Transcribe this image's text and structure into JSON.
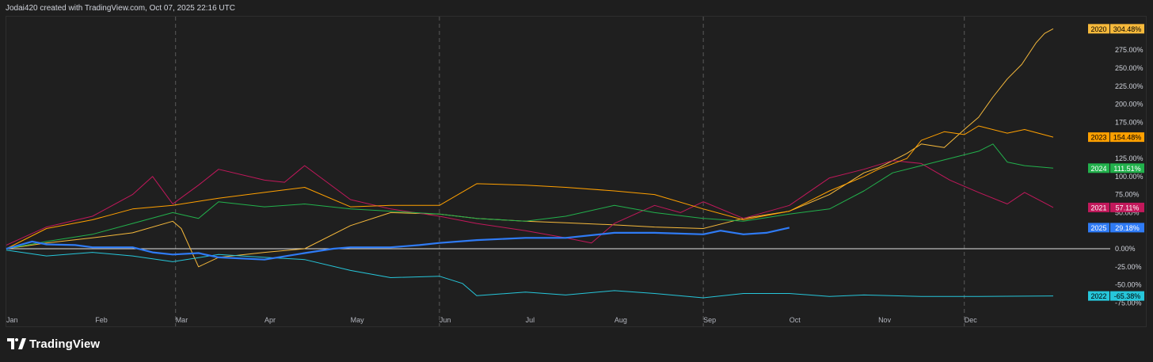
{
  "header": {
    "credit": "Jodai420 created with TradingView.com, Oct 07, 2025 22:16 UTC"
  },
  "footer": {
    "brand": "TradingView"
  },
  "chart_data": {
    "type": "line",
    "title": "",
    "xlabel": "",
    "ylabel": "",
    "x_ticks": [
      "Jan",
      "Feb",
      "Mar",
      "Apr",
      "May",
      "Jun",
      "Jul",
      "Aug",
      "Sep",
      "Oct",
      "Nov",
      "Dec"
    ],
    "y_ticks": [
      "275.00%",
      "250.00%",
      "225.00%",
      "200.00%",
      "175.00%",
      "125.00%",
      "100.00%",
      "75.00%",
      "50.00%",
      "0.00%",
      "-25.00%",
      "-50.00%",
      "-75.00%"
    ],
    "x_range": [
      1,
      366
    ],
    "ylim": [
      -75,
      304.48
    ],
    "grid": {
      "vertical_dashed_months": [
        "Mar",
        "Jun",
        "Sep",
        "Dec"
      ],
      "zero_line": true
    },
    "series": [
      {
        "name": "2020",
        "color": "#f6b93b",
        "last_label": "304.48%",
        "points": [
          [
            1,
            0
          ],
          [
            15,
            8
          ],
          [
            31,
            15
          ],
          [
            45,
            22
          ],
          [
            59,
            38
          ],
          [
            62,
            28
          ],
          [
            68,
            -25
          ],
          [
            75,
            -12
          ],
          [
            91,
            -5
          ],
          [
            105,
            0
          ],
          [
            121,
            32
          ],
          [
            135,
            50
          ],
          [
            152,
            48
          ],
          [
            165,
            42
          ],
          [
            182,
            38
          ],
          [
            196,
            36
          ],
          [
            213,
            33
          ],
          [
            227,
            30
          ],
          [
            244,
            28
          ],
          [
            258,
            42
          ],
          [
            274,
            52
          ],
          [
            288,
            75
          ],
          [
            300,
            105
          ],
          [
            305,
            112
          ],
          [
            315,
            132
          ],
          [
            320,
            145
          ],
          [
            328,
            140
          ],
          [
            335,
            165
          ],
          [
            340,
            182
          ],
          [
            345,
            210
          ],
          [
            350,
            235
          ],
          [
            355,
            255
          ],
          [
            360,
            285
          ],
          [
            363,
            298
          ],
          [
            366,
            304.48
          ]
        ]
      },
      {
        "name": "2021",
        "color": "#c2185b",
        "last_label": "57.11%",
        "points": [
          [
            1,
            5
          ],
          [
            15,
            30
          ],
          [
            31,
            45
          ],
          [
            45,
            75
          ],
          [
            52,
            100
          ],
          [
            59,
            62
          ],
          [
            68,
            88
          ],
          [
            75,
            110
          ],
          [
            91,
            95
          ],
          [
            98,
            92
          ],
          [
            105,
            115
          ],
          [
            121,
            68
          ],
          [
            135,
            55
          ],
          [
            152,
            45
          ],
          [
            165,
            35
          ],
          [
            182,
            25
          ],
          [
            196,
            15
          ],
          [
            205,
            8
          ],
          [
            213,
            35
          ],
          [
            227,
            60
          ],
          [
            236,
            50
          ],
          [
            244,
            65
          ],
          [
            258,
            42
          ],
          [
            274,
            60
          ],
          [
            288,
            98
          ],
          [
            300,
            110
          ],
          [
            310,
            122
          ],
          [
            320,
            118
          ],
          [
            330,
            95
          ],
          [
            340,
            78
          ],
          [
            350,
            62
          ],
          [
            356,
            78
          ],
          [
            366,
            57.11
          ]
        ]
      },
      {
        "name": "2022",
        "color": "#26c6da",
        "last_label": "-65.38%",
        "points": [
          [
            1,
            -2
          ],
          [
            15,
            -10
          ],
          [
            31,
            -5
          ],
          [
            45,
            -10
          ],
          [
            59,
            -18
          ],
          [
            75,
            -8
          ],
          [
            91,
            -12
          ],
          [
            105,
            -15
          ],
          [
            121,
            -30
          ],
          [
            135,
            -40
          ],
          [
            152,
            -38
          ],
          [
            160,
            -48
          ],
          [
            165,
            -65
          ],
          [
            182,
            -60
          ],
          [
            196,
            -64
          ],
          [
            213,
            -58
          ],
          [
            227,
            -62
          ],
          [
            244,
            -68
          ],
          [
            258,
            -62
          ],
          [
            274,
            -62
          ],
          [
            288,
            -66
          ],
          [
            300,
            -64
          ],
          [
            320,
            -66
          ],
          [
            340,
            -66
          ],
          [
            366,
            -65.38
          ]
        ]
      },
      {
        "name": "2023",
        "color": "#ffa000",
        "last_label": "154.48%",
        "points": [
          [
            1,
            0
          ],
          [
            15,
            28
          ],
          [
            31,
            40
          ],
          [
            45,
            55
          ],
          [
            59,
            60
          ],
          [
            75,
            70
          ],
          [
            91,
            78
          ],
          [
            105,
            85
          ],
          [
            121,
            58
          ],
          [
            135,
            60
          ],
          [
            152,
            60
          ],
          [
            165,
            90
          ],
          [
            182,
            88
          ],
          [
            196,
            85
          ],
          [
            213,
            80
          ],
          [
            227,
            75
          ],
          [
            244,
            55
          ],
          [
            258,
            40
          ],
          [
            274,
            52
          ],
          [
            288,
            80
          ],
          [
            300,
            100
          ],
          [
            305,
            110
          ],
          [
            315,
            125
          ],
          [
            320,
            150
          ],
          [
            328,
            162
          ],
          [
            335,
            158
          ],
          [
            340,
            170
          ],
          [
            350,
            160
          ],
          [
            356,
            165
          ],
          [
            366,
            154.48
          ]
        ]
      },
      {
        "name": "2024",
        "color": "#22b14c",
        "last_label": "111.51%",
        "points": [
          [
            1,
            0
          ],
          [
            15,
            10
          ],
          [
            31,
            20
          ],
          [
            45,
            35
          ],
          [
            59,
            50
          ],
          [
            68,
            42
          ],
          [
            75,
            65
          ],
          [
            91,
            58
          ],
          [
            105,
            62
          ],
          [
            121,
            55
          ],
          [
            135,
            52
          ],
          [
            152,
            48
          ],
          [
            165,
            42
          ],
          [
            182,
            38
          ],
          [
            196,
            45
          ],
          [
            213,
            60
          ],
          [
            227,
            50
          ],
          [
            244,
            42
          ],
          [
            258,
            38
          ],
          [
            274,
            48
          ],
          [
            288,
            55
          ],
          [
            300,
            80
          ],
          [
            310,
            105
          ],
          [
            320,
            115
          ],
          [
            330,
            125
          ],
          [
            340,
            135
          ],
          [
            345,
            145
          ],
          [
            350,
            120
          ],
          [
            356,
            115
          ],
          [
            366,
            111.51
          ]
        ]
      },
      {
        "name": "2025",
        "color": "#2f7bf5",
        "last_label": "29.18%",
        "width": 2.2,
        "points": [
          [
            1,
            0
          ],
          [
            10,
            10
          ],
          [
            15,
            6
          ],
          [
            25,
            5
          ],
          [
            31,
            2
          ],
          [
            45,
            2
          ],
          [
            52,
            -5
          ],
          [
            59,
            -8
          ],
          [
            68,
            -6
          ],
          [
            75,
            -12
          ],
          [
            91,
            -15
          ],
          [
            105,
            -6
          ],
          [
            115,
            0
          ],
          [
            121,
            2
          ],
          [
            135,
            2
          ],
          [
            145,
            5
          ],
          [
            152,
            8
          ],
          [
            165,
            12
          ],
          [
            182,
            15
          ],
          [
            196,
            15
          ],
          [
            213,
            22
          ],
          [
            227,
            22
          ],
          [
            244,
            20
          ],
          [
            250,
            25
          ],
          [
            258,
            20
          ],
          [
            266,
            22
          ],
          [
            274,
            29.18
          ]
        ]
      }
    ]
  }
}
